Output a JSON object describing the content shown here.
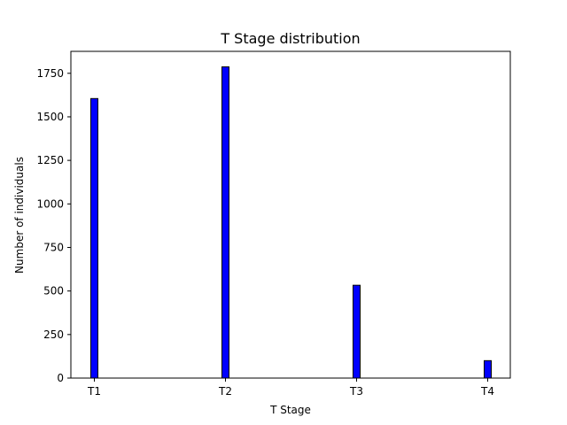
{
  "chart_data": {
    "type": "bar",
    "title": "T Stage distribution",
    "xlabel": "T Stage",
    "ylabel": "Number of individuals",
    "categories": [
      "T1",
      "T2",
      "T3",
      "T4"
    ],
    "values": [
      1605,
      1787,
      533,
      100
    ],
    "ylim": [
      0,
      1876
    ],
    "yticks": [
      0,
      250,
      500,
      750,
      1000,
      1250,
      1500,
      1750
    ],
    "grid": false,
    "legend": "none",
    "bar_color": "#0000ff",
    "edge_color": "#000000"
  }
}
